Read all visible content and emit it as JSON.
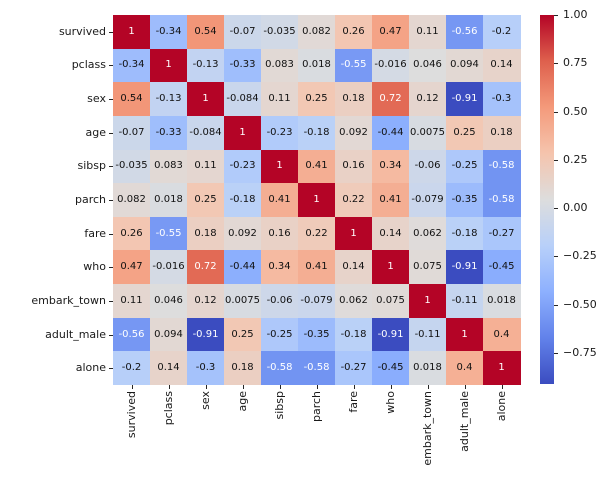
{
  "chart_data": {
    "type": "heatmap",
    "title": "",
    "variables": [
      "survived",
      "pclass",
      "sex",
      "age",
      "sibsp",
      "parch",
      "fare",
      "who",
      "embark_town",
      "adult_male",
      "alone"
    ],
    "matrix": [
      [
        1,
        -0.34,
        0.54,
        -0.07,
        -0.035,
        0.082,
        0.26,
        0.47,
        0.11,
        -0.56,
        -0.2
      ],
      [
        -0.34,
        1,
        -0.13,
        -0.33,
        0.083,
        0.018,
        -0.55,
        -0.016,
        0.046,
        0.094,
        0.14
      ],
      [
        0.54,
        -0.13,
        1,
        -0.084,
        0.11,
        0.25,
        0.18,
        0.72,
        0.12,
        -0.91,
        -0.3
      ],
      [
        -0.07,
        -0.33,
        -0.084,
        1,
        -0.23,
        -0.18,
        0.092,
        -0.44,
        0.0075,
        0.25,
        0.18
      ],
      [
        -0.035,
        0.083,
        0.11,
        -0.23,
        1,
        0.41,
        0.16,
        0.34,
        -0.06,
        -0.25,
        -0.58
      ],
      [
        0.082,
        0.018,
        0.25,
        -0.18,
        0.41,
        1,
        0.22,
        0.41,
        -0.079,
        -0.35,
        -0.58
      ],
      [
        0.26,
        -0.55,
        0.18,
        0.092,
        0.16,
        0.22,
        1,
        0.14,
        0.062,
        -0.18,
        -0.27
      ],
      [
        0.47,
        -0.016,
        0.72,
        -0.44,
        0.34,
        0.41,
        0.14,
        1,
        0.075,
        -0.91,
        -0.45
      ],
      [
        0.11,
        0.046,
        0.12,
        0.0075,
        -0.06,
        -0.079,
        0.062,
        0.075,
        1,
        -0.11,
        0.018
      ],
      [
        -0.56,
        0.094,
        -0.91,
        0.25,
        -0.25,
        -0.35,
        -0.18,
        -0.91,
        -0.11,
        1,
        0.4
      ],
      [
        -0.2,
        0.14,
        -0.3,
        0.18,
        -0.58,
        -0.58,
        -0.27,
        -0.45,
        0.018,
        0.4,
        1
      ]
    ],
    "annotation_format": ".2g",
    "vmin": -0.91,
    "vmax": 1.0,
    "grid": false,
    "legend_position": "right-colorbar",
    "colormap": {
      "name": "coolwarm",
      "anchors": [
        [
          0.0,
          "#3B4CC0"
        ],
        [
          0.125,
          "#6282EA"
        ],
        [
          0.25,
          "#8DB0FE"
        ],
        [
          0.375,
          "#B8D0F9"
        ],
        [
          0.5,
          "#DDDDDD"
        ],
        [
          0.625,
          "#F5C4AD"
        ],
        [
          0.75,
          "#F49A7B"
        ],
        [
          0.875,
          "#DE604D"
        ],
        [
          1.0,
          "#B40426"
        ]
      ]
    },
    "annotation_text_colors": {
      "dark": "#111111",
      "light": "#ffffff",
      "light_if_value_at_or_below": -0.5,
      "light_if_value_at_or_above": 0.7
    },
    "colorbar_ticks": [
      {
        "value": 1.0,
        "label": "1.00"
      },
      {
        "value": 0.75,
        "label": "0.75"
      },
      {
        "value": 0.5,
        "label": "0.50"
      },
      {
        "value": 0.25,
        "label": "0.25"
      },
      {
        "value": 0.0,
        "label": "0.00"
      },
      {
        "value": -0.25,
        "label": "−0.25"
      },
      {
        "value": -0.5,
        "label": "−0.50"
      },
      {
        "value": -0.75,
        "label": "−0.75"
      }
    ]
  }
}
